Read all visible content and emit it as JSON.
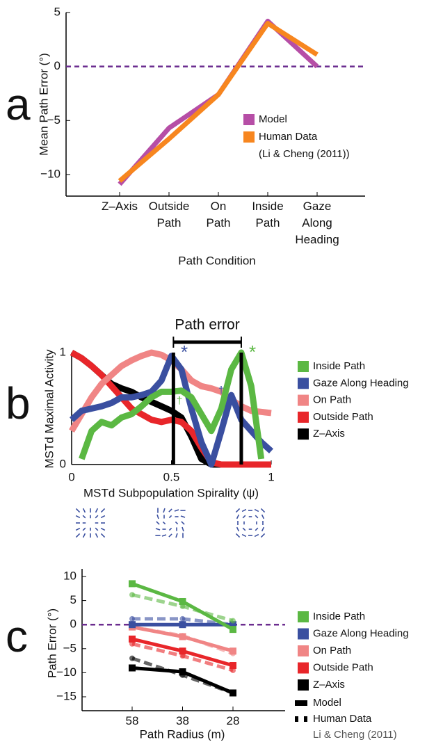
{
  "chart_data": [
    {
      "type": "line",
      "panel_label": "a",
      "x_label": "Path Condition",
      "y_label": "Mean Path Error (°)",
      "categories": [
        "Z–Axis",
        "Outside Path",
        "On Path",
        "Inside Path",
        "Gaze Along Heading"
      ],
      "series": [
        {
          "name": "Model",
          "color": "#b64ea6",
          "values": [
            -10.9,
            -5.7,
            -2.6,
            4.2,
            0
          ]
        },
        {
          "name": "Human Data",
          "legend_note": "(Li & Cheng (2011))",
          "color": "#f7861f",
          "values": [
            -10.6,
            -6.7,
            -2.6,
            4.0,
            1.1
          ]
        }
      ],
      "ylim": [
        -12,
        5
      ],
      "yticks": [
        {
          "value": -10,
          "label": "−10"
        },
        {
          "value": -5,
          "label": "−5"
        },
        0,
        5
      ],
      "reference_line": {
        "value": 0,
        "color": "#6b2c8f"
      }
    },
    {
      "type": "line",
      "panel_label": "b",
      "x_label": "MSTd Subpopulation Spirality (ψ)",
      "y_label": "MSTd Maximal Activity",
      "title": "Path error",
      "x": [
        0,
        0.05,
        0.1,
        0.15,
        0.2,
        0.25,
        0.3,
        0.35,
        0.4,
        0.45,
        0.5,
        0.55,
        0.6,
        0.65,
        0.7,
        0.75,
        0.8,
        0.85,
        0.9,
        0.95,
        1
      ],
      "series": [
        {
          "name": "Inside Path",
          "color": "#5bb843",
          "values": [
            null,
            0.05,
            0.3,
            0.38,
            0.35,
            0.42,
            0.45,
            0.52,
            0.6,
            0.65,
            0.65,
            0.66,
            0.6,
            0.45,
            0.3,
            0.5,
            0.85,
            1.0,
            0.7,
            0.05,
            null
          ]
        },
        {
          "name": "Gaze Along Heading",
          "color": "#3a4fa0",
          "values": [
            0.4,
            0.48,
            0.5,
            0.52,
            0.55,
            0.6,
            0.6,
            0.62,
            0.65,
            0.75,
            0.97,
            0.85,
            0.5,
            0.2,
            0,
            0.3,
            0.62,
            0.4,
            0.3,
            0.2,
            0.12
          ]
        },
        {
          "name": "On Path",
          "color": "#f08585",
          "values": [
            0.3,
            0.45,
            0.6,
            0.72,
            0.8,
            0.88,
            0.93,
            0.97,
            1.0,
            0.98,
            0.93,
            0.85,
            0.75,
            0.7,
            0.68,
            0.65,
            0.58,
            0.52,
            0.48,
            0.47,
            0.46
          ]
        },
        {
          "name": "Outside Path",
          "color": "#e8262a",
          "values": [
            1.0,
            0.95,
            0.88,
            0.8,
            0.7,
            0.6,
            0.5,
            0.45,
            0.4,
            0.38,
            0.4,
            0.38,
            0.3,
            0.15,
            0.02,
            0,
            0,
            0,
            0,
            0,
            0
          ]
        },
        {
          "name": "Z–Axis",
          "color": "#000000",
          "values": [
            1.0,
            0.95,
            0.88,
            0.8,
            0.72,
            0.68,
            0.65,
            0.6,
            0.56,
            0.52,
            0.48,
            0.42,
            0.25,
            0.05,
            0,
            0,
            0,
            0,
            0,
            0,
            0
          ]
        }
      ],
      "reference_lines_x": [
        0.51,
        0.85
      ],
      "annotations": [
        "*",
        "*",
        "†",
        "†"
      ],
      "xlim": [
        0,
        1
      ],
      "xticks": [
        0,
        0.5,
        1
      ],
      "ylim": [
        0,
        1
      ],
      "yticks": [
        0,
        1
      ]
    },
    {
      "type": "line",
      "panel_label": "c",
      "x_label": "Path Radius (m)",
      "y_label": "Path Error (°)",
      "categories": [
        "58",
        "38",
        "28"
      ],
      "series": [
        {
          "name": "Inside Path",
          "color": "#5bb843",
          "values": [
            8.5,
            4.8,
            -1.0
          ],
          "human_values": [
            6.2,
            3.8,
            0.8
          ]
        },
        {
          "name": "Gaze Along Heading",
          "color": "#3a4fa0",
          "values": [
            0,
            0,
            0
          ],
          "human_values": [
            1.2,
            1.2,
            0
          ]
        },
        {
          "name": "On Path",
          "color": "#f08585",
          "values": [
            -0.5,
            -2.5,
            -5.5
          ],
          "human_values": [
            -0.5,
            -2.3,
            -6.0
          ]
        },
        {
          "name": "Outside Path",
          "color": "#e8262a",
          "values": [
            -3.0,
            -5.5,
            -8.5
          ],
          "human_values": [
            -4.0,
            -6.5,
            -9.5
          ]
        },
        {
          "name": "Z–Axis",
          "color": "#000000",
          "values": [
            -9.0,
            -9.8,
            -14.2
          ],
          "human_values": [
            -7.0,
            -10.5,
            -14.2
          ]
        }
      ],
      "style_legend": [
        "Model",
        "Human Data",
        "Li & Cheng (2011)"
      ],
      "ylim": [
        -15,
        10
      ],
      "yticks": [
        {
          "value": -15,
          "label": "−15"
        },
        {
          "value": -10,
          "label": "−10"
        },
        {
          "value": -5,
          "label": "−5"
        },
        0,
        5,
        10
      ],
      "reference_line": {
        "value": 0,
        "color": "#6b2c8f"
      }
    }
  ]
}
